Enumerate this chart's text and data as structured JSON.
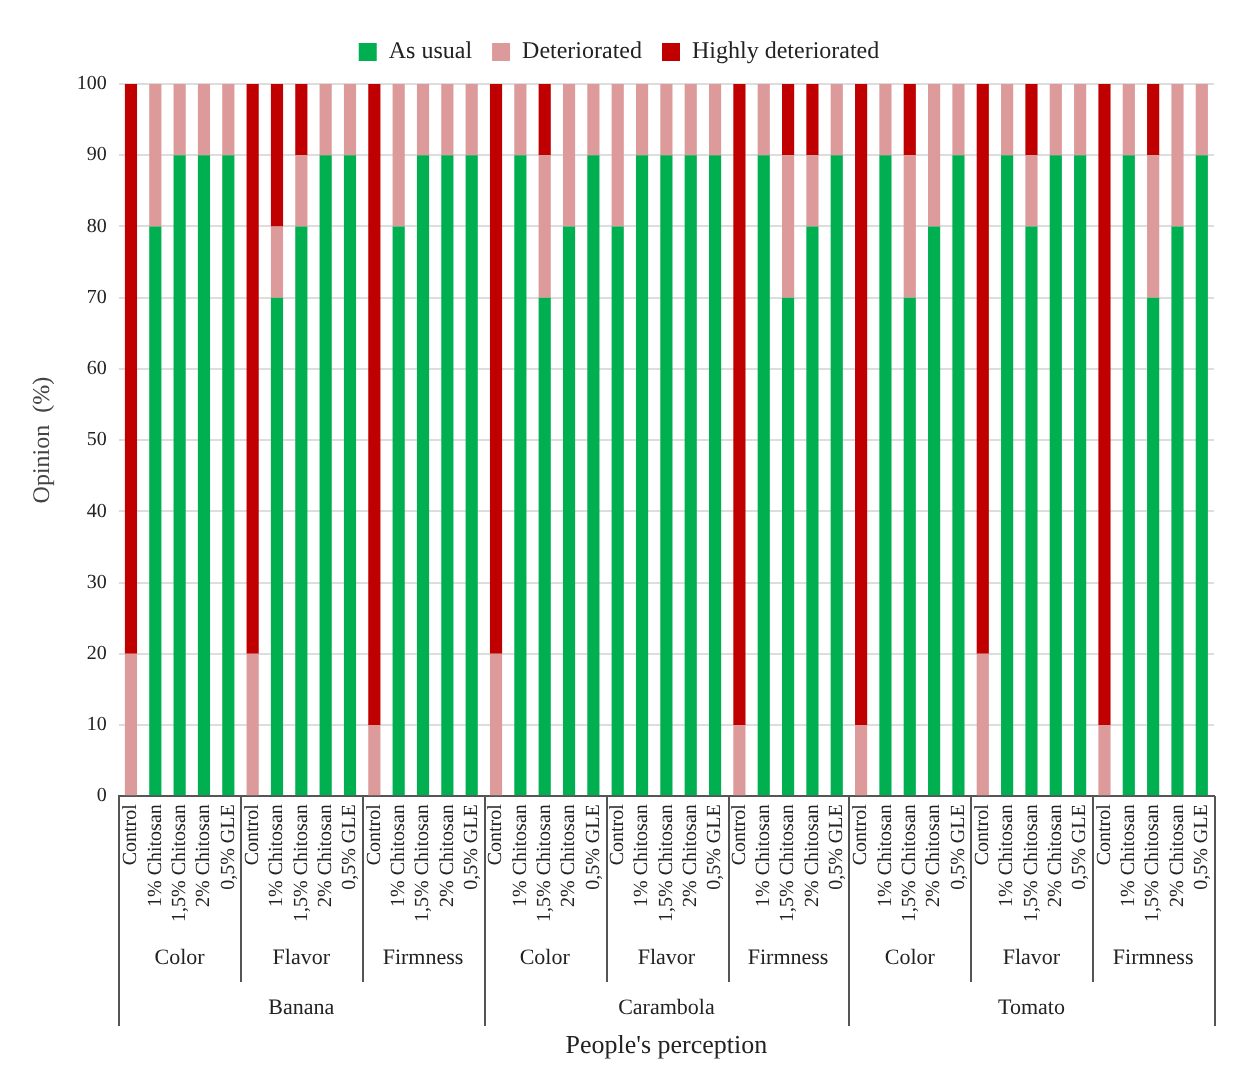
{
  "chart_data": {
    "type": "bar",
    "stacked": true,
    "xlabel": "People's perception",
    "ylabel": "Opinion  (%)",
    "categories": [
      "Control",
      "1% Chitosan",
      "1,5% Chitosan",
      "2% Chitosan",
      "0,5% GLE",
      "Control",
      "1% Chitosan",
      "1,5% Chitosan",
      "2% Chitosan",
      "0,5% GLE",
      "Control",
      "1% Chitosan",
      "1,5% Chitosan",
      "2% Chitosan",
      "0,5% GLE",
      "Control",
      "1% Chitosan",
      "1,5% Chitosan",
      "2% Chitosan",
      "0,5% GLE",
      "Control",
      "1% Chitosan",
      "1,5% Chitosan",
      "2% Chitosan",
      "0,5% GLE",
      "Control",
      "1% Chitosan",
      "1,5% Chitosan",
      "2% Chitosan",
      "0,5% GLE",
      "Control",
      "1% Chitosan",
      "1,5% Chitosan",
      "2% Chitosan",
      "0,5% GLE",
      "Control",
      "1% Chitosan",
      "1,5% Chitosan",
      "2% Chitosan",
      "0,5% GLE",
      "Control",
      "1% Chitosan",
      "1,5% Chitosan",
      "2% Chitosan",
      "0,5% GLE"
    ],
    "annotations": [
      "Color",
      "Flavor",
      "Firmness",
      "Color",
      "Flavor",
      "Firmness",
      "Color",
      "Flavor",
      "Firmness",
      "Banana",
      "Carambola",
      "Tomato"
    ],
    "series": [
      {
        "name": "As usual",
        "color": "#00b050",
        "values": [
          0,
          80,
          90,
          90,
          90,
          0,
          70,
          80,
          90,
          90,
          0,
          80,
          90,
          90,
          90,
          0,
          90,
          70,
          80,
          90,
          80,
          90,
          90,
          90,
          90,
          0,
          90,
          70,
          80,
          90,
          0,
          90,
          70,
          80,
          90,
          0,
          90,
          80,
          90,
          90,
          0,
          90,
          70,
          80,
          90
        ]
      },
      {
        "name": "Deteriorated",
        "color": "#dc9a9a",
        "values": [
          20,
          20,
          10,
          10,
          10,
          20,
          10,
          10,
          10,
          10,
          10,
          20,
          10,
          10,
          10,
          20,
          10,
          20,
          20,
          10,
          20,
          10,
          10,
          10,
          10,
          10,
          10,
          20,
          10,
          10,
          10,
          10,
          20,
          20,
          10,
          20,
          10,
          10,
          10,
          10,
          10,
          10,
          20,
          20,
          10
        ]
      },
      {
        "name": "Highly deteriorated",
        "color": "#c00000",
        "values": [
          80,
          0,
          0,
          0,
          0,
          80,
          20,
          10,
          0,
          0,
          90,
          0,
          0,
          0,
          0,
          80,
          0,
          10,
          0,
          0,
          0,
          0,
          0,
          0,
          0,
          90,
          0,
          10,
          10,
          0,
          90,
          0,
          10,
          0,
          0,
          80,
          0,
          10,
          0,
          0,
          90,
          0,
          10,
          0,
          0
        ]
      }
    ],
    "ylim": [
      0,
      100
    ],
    "yticks": [
      0,
      10,
      20,
      30,
      40,
      50,
      60,
      70,
      80,
      90,
      100
    ],
    "grid": "y",
    "legend": "top"
  }
}
